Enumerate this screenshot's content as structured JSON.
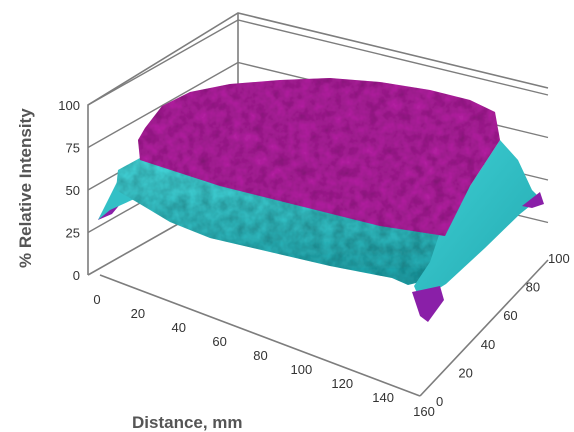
{
  "chart_data": {
    "type": "surface3d",
    "xlabel": "Distance, mm",
    "ylabel": "",
    "zlabel": "% Relative Intensity",
    "x_ticks": [
      "0",
      "20",
      "40",
      "60",
      "80",
      "100",
      "120",
      "140",
      "160"
    ],
    "y_ticks": [
      "0",
      "20",
      "40",
      "60",
      "80",
      "100"
    ],
    "z_ticks": [
      "0",
      "25",
      "50",
      "75",
      "100"
    ],
    "xlim": [
      0,
      160
    ],
    "ylim": [
      0,
      100
    ],
    "zlim": [
      0,
      100
    ],
    "grid": true,
    "surface": {
      "description_values": {
        "plateau_relative_intensity": 90,
        "edge_band_range": [
          50,
          90
        ],
        "corner_relative_intensity": 5
      },
      "colors": {
        "high_intensity": "#b0219f",
        "mid_intensity": "#2ec4c9",
        "low_intensity": "#8a1fa8"
      }
    }
  }
}
